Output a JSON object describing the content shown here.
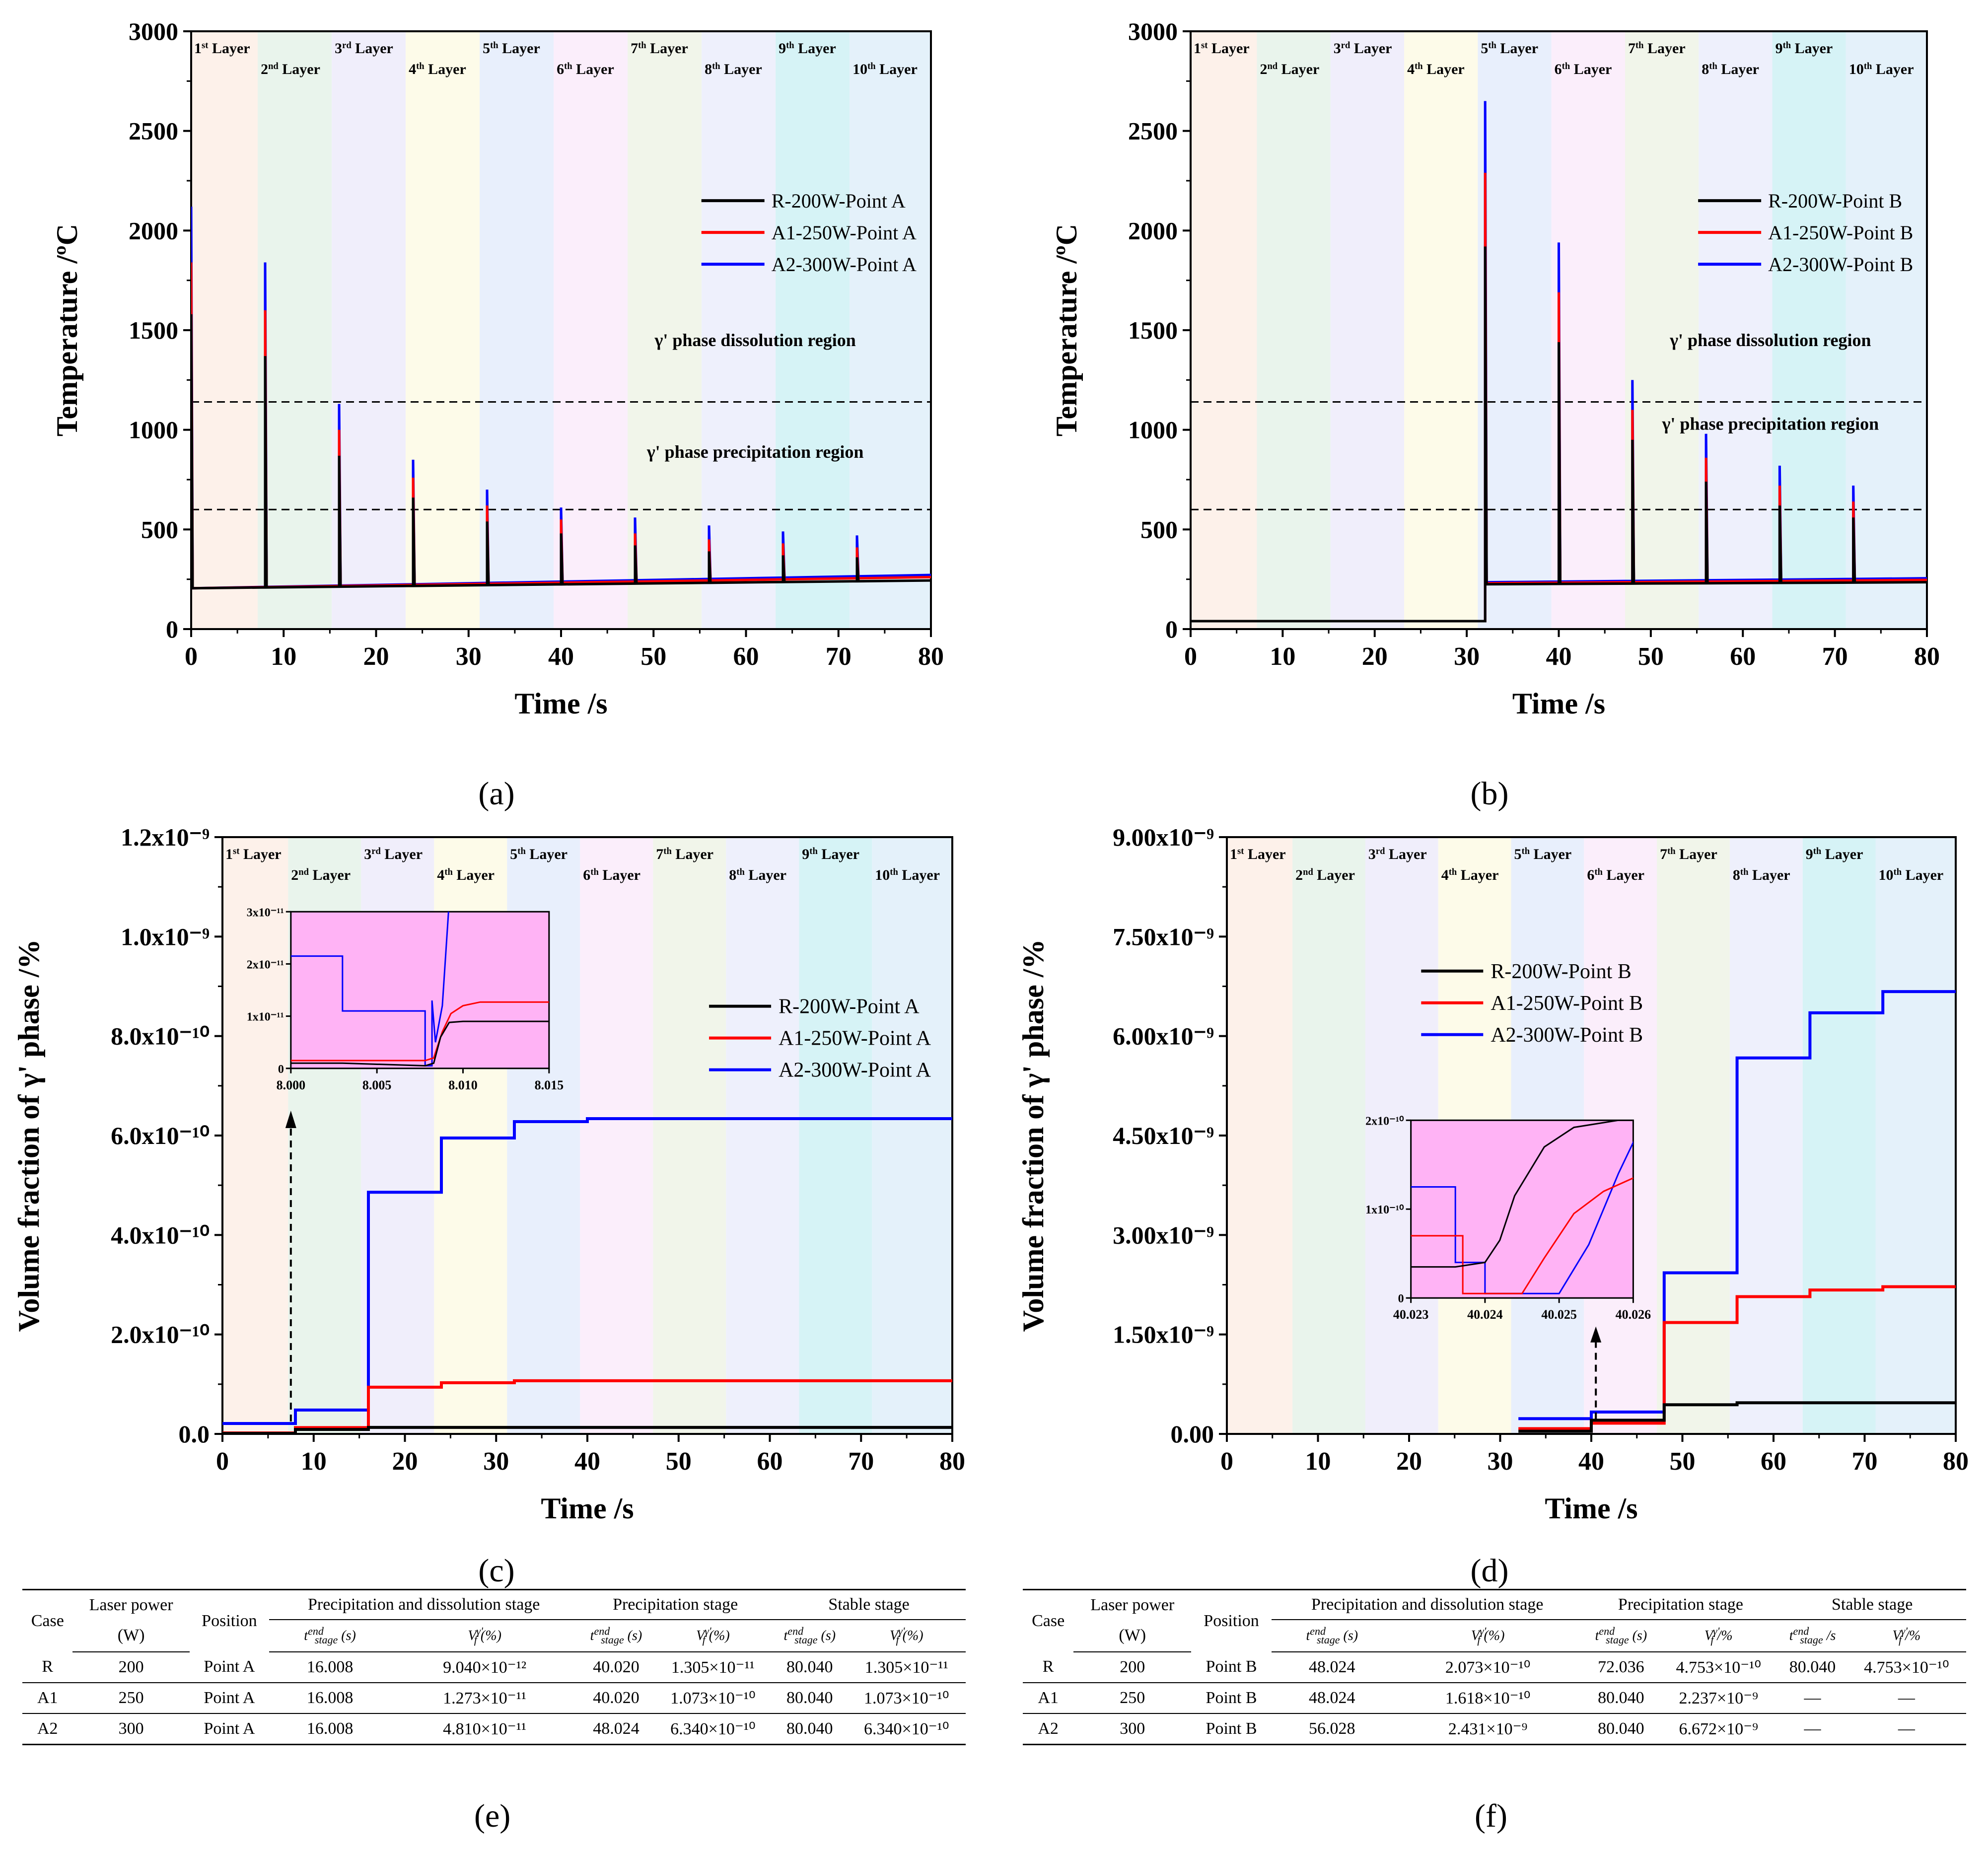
{
  "chart_data": [
    {
      "id": "a",
      "type": "line",
      "panel_label": "(a)",
      "xlabel": "Time /s",
      "ylabel": "Temperature /ºC",
      "xlim": [
        0,
        80
      ],
      "ylim": [
        0,
        3000
      ],
      "xticks": [
        "0",
        "10",
        "20",
        "30",
        "40",
        "50",
        "60",
        "70",
        "80"
      ],
      "yticks": [
        "0",
        "500",
        "1000",
        "1500",
        "2000",
        "2500",
        "3000"
      ],
      "layers": [
        "1st Layer",
        "2nd Layer",
        "3rd Layer",
        "4th Layer",
        "5th Layer",
        "6th Layer",
        "7th Layer",
        "8th Layer",
        "9th Layer",
        "10th Layer"
      ],
      "hlines": [
        1140,
        600
      ],
      "region_labels": [
        "γ' phase dissolution region",
        "γ' phase precipitation region"
      ],
      "legend": [
        "R-200W-Point A",
        "A1-250W-Point A",
        "A2-300W-Point A"
      ],
      "start_time": 0,
      "series": [
        {
          "name": "R-200W-Point A",
          "color": "#000000",
          "peaks": [
            1580,
            1370,
            870,
            660,
            540,
            480,
            420,
            390,
            370,
            360
          ],
          "base0": 205,
          "base1": 240
        },
        {
          "name": "A1-250W-Point A",
          "color": "#ff0000",
          "peaks": [
            1840,
            1600,
            1000,
            760,
            620,
            550,
            480,
            450,
            430,
            410
          ],
          "base0": 205,
          "base1": 255
        },
        {
          "name": "A2-300W-Point A",
          "color": "#0000ff",
          "peaks": [
            2120,
            1840,
            1130,
            850,
            700,
            610,
            560,
            520,
            490,
            470
          ],
          "base0": 205,
          "base1": 265
        }
      ]
    },
    {
      "id": "b",
      "type": "line",
      "panel_label": "(b)",
      "xlabel": "Time /s",
      "ylabel": "Temperature /ºC",
      "xlim": [
        0,
        80
      ],
      "ylim": [
        0,
        3000
      ],
      "xticks": [
        "0",
        "10",
        "20",
        "30",
        "40",
        "50",
        "60",
        "70",
        "80"
      ],
      "yticks": [
        "0",
        "500",
        "1000",
        "1500",
        "2000",
        "2500",
        "3000"
      ],
      "layers": [
        "1st Layer",
        "2nd Layer",
        "3rd Layer",
        "4th Layer",
        "5th Layer",
        "6th Layer",
        "7th Layer",
        "8th Layer",
        "9th Layer",
        "10th Layer"
      ],
      "hlines": [
        1140,
        600
      ],
      "region_labels": [
        "γ' phase dissolution region",
        "γ' phase precipitation region"
      ],
      "legend": [
        "R-200W-Point B",
        "A1-250W-Point B",
        "A2-300W-Point B"
      ],
      "start_time": 32,
      "pre_value": 40,
      "series": [
        {
          "name": "R-200W-Point B",
          "color": "#000000",
          "peaks": [
            1920,
            1440,
            950,
            740,
            620,
            560
          ],
          "base0": 225,
          "base1": 240
        },
        {
          "name": "A1-250W-Point B",
          "color": "#ff0000",
          "peaks": [
            2290,
            1690,
            1100,
            860,
            720,
            640
          ],
          "base0": 230,
          "base1": 255
        },
        {
          "name": "A2-300W-Point B",
          "color": "#0000ff",
          "peaks": [
            2650,
            1940,
            1250,
            980,
            820,
            720
          ],
          "base0": 235,
          "base1": 265
        }
      ]
    },
    {
      "id": "c",
      "type": "line",
      "panel_label": "(c)",
      "xlabel": "Time /s",
      "ylabel": "Volume fraction of  γ' phase /%",
      "xlim": [
        0,
        80
      ],
      "ylim": [
        0,
        1.2e-09
      ],
      "xticks": [
        "0",
        "10",
        "20",
        "30",
        "40",
        "50",
        "60",
        "70",
        "80"
      ],
      "yticks": [
        "0.0",
        "2.0x10⁻¹⁰",
        "4.0x10⁻¹⁰",
        "6.0x10⁻¹⁰",
        "8.0x10⁻¹⁰",
        "1.0x10⁻⁹",
        "1.2x10⁻⁹"
      ],
      "layers": [
        "1st Layer",
        "2nd Layer",
        "3rd Layer",
        "4th Layer",
        "5th Layer",
        "6th Layer",
        "7th Layer",
        "8th Layer",
        "9th Layer",
        "10th Layer"
      ],
      "legend": [
        "R-200W-Point A",
        "A1-250W-Point A",
        "A2-300W-Point A"
      ],
      "series": [
        {
          "name": "R-200W-Point A",
          "color": "#000000",
          "steps": [
            [
              0,
              1e-12
            ],
            [
              8,
              9e-12
            ],
            [
              16,
              1.305e-11
            ],
            [
              80,
              1.305e-11
            ]
          ]
        },
        {
          "name": "A1-250W-Point A",
          "color": "#ff0000",
          "steps": [
            [
              0,
              2e-12
            ],
            [
              8,
              1.27e-11
            ],
            [
              16,
              9.4e-11
            ],
            [
              24,
              1.03e-10
            ],
            [
              32,
              1.07e-10
            ],
            [
              80,
              1.073e-10
            ]
          ]
        },
        {
          "name": "A2-300W-Point A",
          "color": "#0000ff",
          "steps": [
            [
              0,
              2.1e-11
            ],
            [
              8,
              4.8e-11
            ],
            [
              16,
              4.86e-10
            ],
            [
              24,
              5.95e-10
            ],
            [
              32,
              6.28e-10
            ],
            [
              40,
              6.34e-10
            ],
            [
              80,
              6.34e-10
            ]
          ]
        }
      ],
      "inset": {
        "xlim": [
          8.0,
          8.015
        ],
        "ylim": [
          0,
          3e-11
        ],
        "xticks": [
          "8.000",
          "8.005",
          "8.010",
          "8.015"
        ],
        "yticks": [
          "0",
          "1x10⁻¹¹",
          "2x10⁻¹¹",
          "3x10⁻¹¹"
        ]
      }
    },
    {
      "id": "d",
      "type": "line",
      "panel_label": "(d)",
      "xlabel": "Time /s",
      "ylabel": "Volume fraction of  γ' phase /%",
      "xlim": [
        0,
        80
      ],
      "ylim": [
        0,
        9e-09
      ],
      "xticks": [
        "0",
        "10",
        "20",
        "30",
        "40",
        "50",
        "60",
        "70",
        "80"
      ],
      "yticks": [
        "0.00",
        "1.50x10⁻⁹",
        "3.00x10⁻⁹",
        "4.50x10⁻⁹",
        "6.00x10⁻⁹",
        "7.50x10⁻⁹",
        "9.00x10⁻⁹"
      ],
      "layers": [
        "1st Layer",
        "2nd Layer",
        "3rd Layer",
        "4th Layer",
        "5th Layer",
        "6th Layer",
        "7th Layer",
        "8th Layer",
        "9th Layer",
        "10th Layer"
      ],
      "legend": [
        "R-200W-Point B",
        "A1-250W-Point B",
        "A2-300W-Point B"
      ],
      "series": [
        {
          "name": "R-200W-Point B",
          "color": "#000000",
          "steps": [
            [
              32,
              4e-11
            ],
            [
              40,
              2.07e-10
            ],
            [
              48,
              4.4e-10
            ],
            [
              56,
              4.7e-10
            ],
            [
              80,
              4.753e-10
            ]
          ]
        },
        {
          "name": "A1-250W-Point B",
          "color": "#ff0000",
          "steps": [
            [
              32,
              8e-11
            ],
            [
              40,
              1.62e-10
            ],
            [
              48,
              1.68e-09
            ],
            [
              56,
              2.07e-09
            ],
            [
              64,
              2.17e-09
            ],
            [
              72,
              2.22e-09
            ],
            [
              80,
              2.237e-09
            ]
          ]
        },
        {
          "name": "A2-300W-Point B",
          "color": "#0000ff",
          "steps": [
            [
              32,
              2.3e-10
            ],
            [
              40,
              3.3e-10
            ],
            [
              48,
              2.43e-09
            ],
            [
              56,
              5.67e-09
            ],
            [
              64,
              6.35e-09
            ],
            [
              72,
              6.67e-09
            ],
            [
              80,
              6.672e-09
            ]
          ]
        }
      ],
      "inset": {
        "xlim": [
          40.023,
          40.026
        ],
        "ylim": [
          0,
          2e-10
        ],
        "xticks": [
          "40.023",
          "40.024",
          "40.025",
          "40.026"
        ],
        "yticks": [
          "0",
          "1x10⁻¹⁰",
          "2x10⁻¹⁰"
        ]
      }
    }
  ],
  "tables": {
    "e": {
      "panel_label": "(e)",
      "head1": [
        "Case",
        "Laser power",
        "Position",
        "Precipitation and dissolution stage",
        "Precipitation stage",
        "Stable stage"
      ],
      "head_unit": "(W)",
      "sub": [
        "t_stage^end (s)",
        "V_f^γ' (%)",
        "t_stage^end (s)",
        "V_f^γ' (%)",
        "t_stage^end (s)",
        "V_f^γ' (%)"
      ],
      "rows": [
        [
          "R",
          "200",
          "Point A",
          "16.008",
          "9.040×10⁻¹²",
          "40.020",
          "1.305×10⁻¹¹",
          "80.040",
          "1.305×10⁻¹¹"
        ],
        [
          "A1",
          "250",
          "Point A",
          "16.008",
          "1.273×10⁻¹¹",
          "40.020",
          "1.073×10⁻¹⁰",
          "80.040",
          "1.073×10⁻¹⁰"
        ],
        [
          "A2",
          "300",
          "Point A",
          "16.008",
          "4.810×10⁻¹¹",
          "48.024",
          "6.340×10⁻¹⁰",
          "80.040",
          "6.340×10⁻¹⁰"
        ]
      ]
    },
    "f": {
      "panel_label": "(f)",
      "head1": [
        "Case",
        "Laser power",
        "Position",
        "Precipitation and dissolution stage",
        "Precipitation stage",
        "Stable stage"
      ],
      "head_unit": "(W)",
      "sub": [
        "t_stage^end (s)",
        "V_f^γ' (%)",
        "t_stage^end (s)",
        "V_f^γ' /%",
        "t_stage^end /s",
        "V_f^γ' /%"
      ],
      "rows": [
        [
          "R",
          "200",
          "Point B",
          "48.024",
          "2.073×10⁻¹⁰",
          "72.036",
          "4.753×10⁻¹⁰",
          "80.040",
          "4.753×10⁻¹⁰"
        ],
        [
          "A1",
          "250",
          "Point B",
          "48.024",
          "1.618×10⁻¹⁰",
          "80.040",
          "2.237×10⁻⁹",
          "—",
          "—"
        ],
        [
          "A2",
          "300",
          "Point B",
          "56.028",
          "2.431×10⁻⁹",
          "80.040",
          "6.672×10⁻⁹",
          "—",
          "—"
        ]
      ]
    }
  },
  "colors": {
    "layer_bands": [
      "#fdf1ea",
      "#e9f4ec",
      "#f0eefb",
      "#fdfbe9",
      "#e8effc",
      "#fbeefb",
      "#f1f5ea",
      "#eef0fc",
      "#d6f3f6",
      "#e4f1fa"
    ],
    "inset_bg": "#ffb3f5"
  }
}
